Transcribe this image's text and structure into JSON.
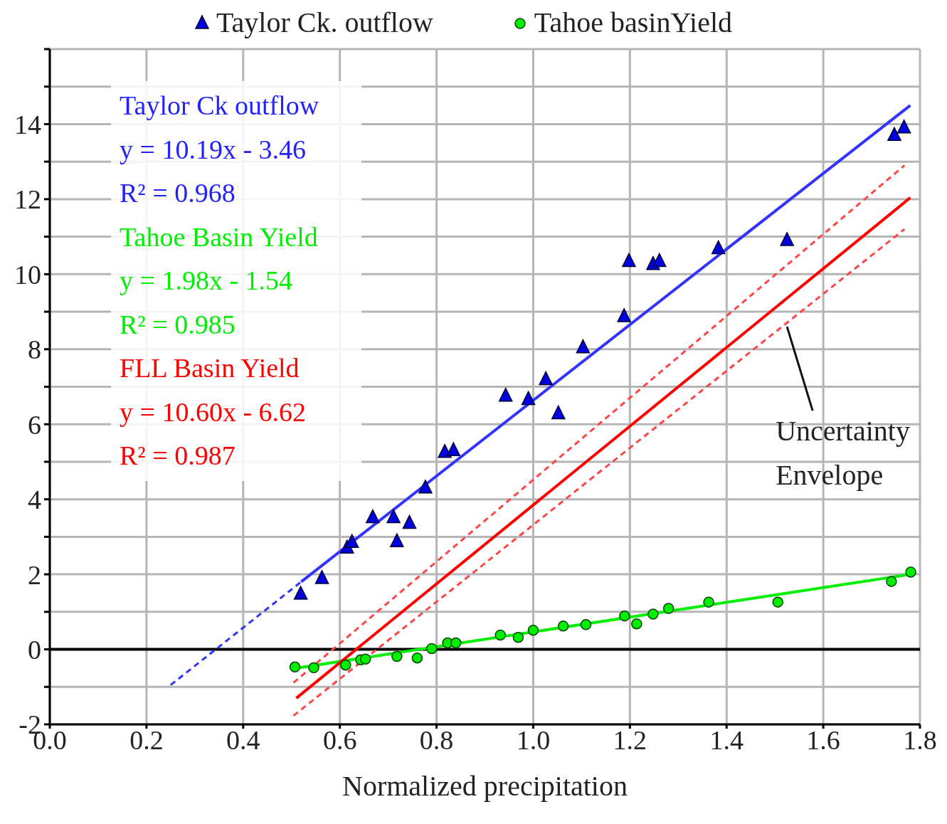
{
  "chart_data": {
    "type": "scatter",
    "xlabel": "Normalized precipitation",
    "xlim": [
      0,
      1.8
    ],
    "xticks": [
      {
        "value": 0,
        "label": "0.0"
      },
      {
        "value": 0.2,
        "label": "0.2"
      },
      {
        "value": 0.4,
        "label": "0.4"
      },
      {
        "value": 0.6,
        "label": "0.6"
      },
      {
        "value": 0.8,
        "label": "0.8"
      },
      {
        "value": 1,
        "label": "1.0"
      },
      {
        "value": 1.2,
        "label": "1.2"
      },
      {
        "value": 1.4,
        "label": "1.4"
      },
      {
        "value": 1.6,
        "label": "1.6"
      },
      {
        "value": 1.8,
        "label": "1.8"
      }
    ],
    "ylim": [
      -2,
      16
    ],
    "yticks": [
      -2,
      {
        "value": -1,
        "label": null
      },
      0,
      {
        "value": 1,
        "label": null
      },
      2,
      {
        "value": 3,
        "label": null
      },
      4,
      {
        "value": 5,
        "label": null
      },
      6,
      {
        "value": 7,
        "label": null
      },
      8,
      {
        "value": 9,
        "label": null
      },
      10,
      {
        "value": 11,
        "label": null
      },
      12,
      {
        "value": 13,
        "label": null
      },
      14,
      {
        "value": 15,
        "label": null
      },
      {
        "value": 16,
        "label": null
      }
    ],
    "grid": true,
    "legend": "top",
    "series": [
      {
        "name": "Taylor Ck. outflow",
        "marker": "triangle",
        "color": "#0000e0",
        "x": [
          0.519,
          0.563,
          0.615,
          0.625,
          0.668,
          0.711,
          0.718,
          0.744,
          0.777,
          0.817,
          0.835,
          0.943,
          0.99,
          1.026,
          1.052,
          1.103,
          1.188,
          1.198,
          1.248,
          1.261,
          1.383,
          1.525,
          1.747,
          1.767
        ],
        "values": [
          1.47,
          1.89,
          2.7,
          2.85,
          3.51,
          3.51,
          2.87,
          3.36,
          4.3,
          5.25,
          5.3,
          6.75,
          6.66,
          7.19,
          6.28,
          8.04,
          8.87,
          10.34,
          10.26,
          10.34,
          10.68,
          10.9,
          13.7,
          13.9
        ]
      },
      {
        "name": "Tahoe basinYield",
        "marker": "circle",
        "color": "#00ee00",
        "x": [
          0.507,
          0.546,
          0.612,
          0.643,
          0.653,
          0.718,
          0.76,
          0.79,
          0.823,
          0.84,
          0.932,
          0.969,
          1.0,
          1.062,
          1.109,
          1.189,
          1.214,
          1.248,
          1.28,
          1.363,
          1.506,
          1.741,
          1.781
        ],
        "values": [
          -0.47,
          -0.49,
          -0.42,
          -0.28,
          -0.26,
          -0.19,
          -0.23,
          0.02,
          0.17,
          0.17,
          0.38,
          0.32,
          0.51,
          0.62,
          0.66,
          0.89,
          0.68,
          0.94,
          1.09,
          1.26,
          1.26,
          1.81,
          2.06
        ]
      },
      {
        "type": "line",
        "color": "#3333ff",
        "line_style": "dashed",
        "x": [
          0.25,
          0.52
        ],
        "values": [
          -0.95,
          1.8
        ]
      },
      {
        "type": "line",
        "color": "#3333ff",
        "line_style": "solid",
        "x": [
          0.52,
          1.78
        ],
        "values": [
          1.8,
          14.5
        ]
      },
      {
        "type": "line",
        "color": "#00ee00",
        "line_style": "solid",
        "x": [
          0.51,
          1.78
        ],
        "values": [
          -0.5,
          2.0
        ]
      },
      {
        "type": "line",
        "color": "#ff0000",
        "line_style": "solid",
        "x": [
          0.51,
          1.78
        ],
        "values": [
          -1.3,
          12.04
        ]
      },
      {
        "type": "line",
        "color": "#ff4444",
        "line_style": "dashed",
        "x": [
          0.504,
          1.768
        ],
        "values": [
          -0.89,
          12.9
        ]
      },
      {
        "type": "line",
        "color": "#ff4444",
        "line_style": "dashed",
        "x": [
          0.504,
          1.768
        ],
        "values": [
          -1.77,
          11.2
        ]
      }
    ],
    "ref_lines": [
      {
        "axis": "y",
        "value": 0,
        "color": "#000000"
      }
    ],
    "annotations": [
      "Taylor Ck outflow",
      "y = 10.19x - 3.46",
      "R² = 0.968",
      "Tahoe Basin Yield",
      "y = 1.98x - 1.54",
      "R² = 0.985",
      "FLL Basin Yield",
      "y = 10.60x - 6.62",
      "R² = 0.987",
      {
        "text": "Uncertainty Envelope",
        "x": 1.525,
        "y": 8.6
      }
    ]
  }
}
